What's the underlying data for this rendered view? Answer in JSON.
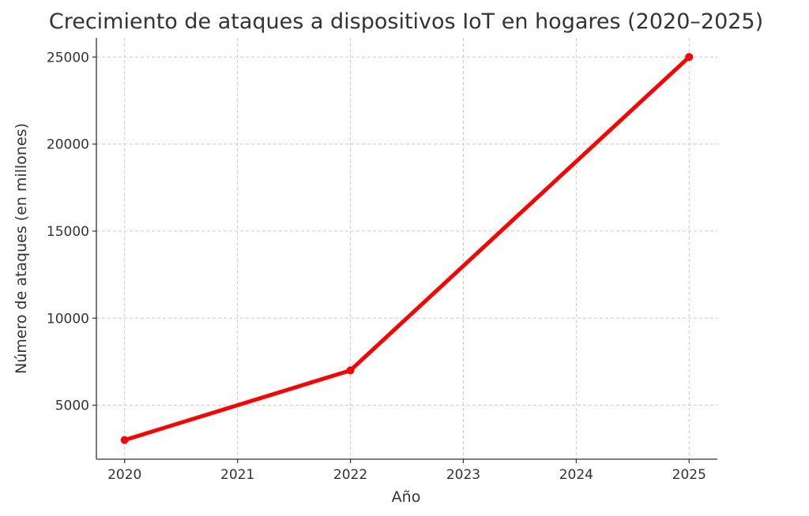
{
  "chart_data": {
    "type": "line",
    "title": "Crecimiento de ataques a dispositivos IoT en hogares (2020–2025)",
    "xlabel": "Año",
    "ylabel": "Número de ataques (en millones)",
    "x": [
      2020,
      2021,
      2022,
      2023,
      2024,
      2025
    ],
    "series": [
      {
        "values": [
          3000,
          5000,
          7000,
          13000,
          19000,
          25000
        ],
        "color": "#ff0000"
      }
    ],
    "marker_indices": [
      0,
      2,
      5
    ],
    "xlim": [
      2019.75,
      2025.25
    ],
    "ylim": [
      1900,
      26100
    ],
    "xticks": [
      2020,
      2021,
      2022,
      2023,
      2024,
      2025
    ],
    "yticks": [
      5000,
      10000,
      15000,
      20000,
      25000
    ],
    "grid": true,
    "legend": "none"
  }
}
